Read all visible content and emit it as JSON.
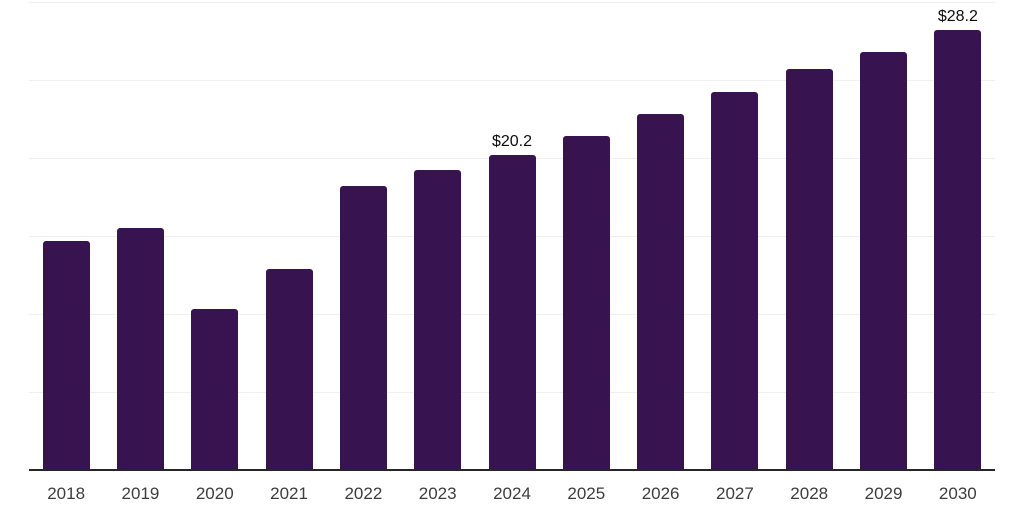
{
  "chart_data": {
    "type": "bar",
    "title": "",
    "xlabel": "",
    "ylabel": "",
    "categories": [
      "2018",
      "2019",
      "2020",
      "2021",
      "2022",
      "2023",
      "2024",
      "2025",
      "2026",
      "2027",
      "2028",
      "2029",
      "2030"
    ],
    "values": [
      14.7,
      15.5,
      10.3,
      12.9,
      18.2,
      19.2,
      20.2,
      21.4,
      22.8,
      24.2,
      25.7,
      26.8,
      28.2
    ],
    "value_labels": [
      "",
      "",
      "",
      "",
      "",
      "",
      "$20.2",
      "",
      "",
      "",
      "",
      "",
      "$28.2"
    ],
    "ylim": [
      0,
      30
    ],
    "grid_step": 5,
    "grid": true,
    "legend": false,
    "colors": {
      "bar": "#371450",
      "axis": "#262626",
      "gridline": "#F0F0F0",
      "tick_label": "#3D3D3D",
      "value_label": "#0D0D0D",
      "background": "#FFFFFF"
    }
  }
}
